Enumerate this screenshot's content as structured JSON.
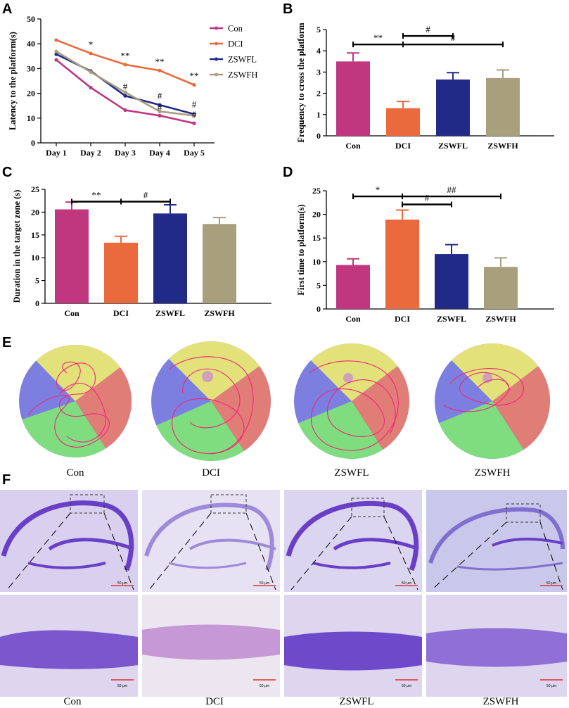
{
  "panel_labels": [
    "A",
    "B",
    "C",
    "D",
    "E",
    "F"
  ],
  "colors": {
    "con": "#c0377f",
    "dci": "#ea6a3d",
    "zswfl": "#222a87",
    "zswfh": "#a89f7d",
    "quad_yellow": "#e3e27a",
    "quad_red": "#e17d77",
    "quad_green": "#7fdd80",
    "quad_blue": "#7d7fe0",
    "track": "#f0257a",
    "stain_dark": "#6a3fc7",
    "stain_light": "#d8d0ee"
  },
  "chart_data": [
    {
      "panel": "A",
      "type": "line",
      "title": "",
      "xlabel": "",
      "ylabel": "Latency to the  platform(s)",
      "categories": [
        "Day 1",
        "Day 2",
        "Day 3",
        "Day 4",
        "Day 5"
      ],
      "ylim": [
        0,
        50
      ],
      "yticks": [
        0,
        10,
        20,
        30,
        40,
        50
      ],
      "series": [
        {
          "name": "Con",
          "color": "#c0377f",
          "values": [
            33.5,
            22.3,
            13.2,
            11.0,
            7.9
          ]
        },
        {
          "name": "DCI",
          "color": "#ea6a3d",
          "values": [
            41.5,
            36.1,
            31.6,
            29.2,
            23.4
          ]
        },
        {
          "name": "ZSWFL",
          "color": "#222a87",
          "values": [
            35.8,
            29.0,
            19.0,
            15.3,
            11.6
          ]
        },
        {
          "name": "ZSWFH",
          "color": "#a89f7d",
          "values": [
            36.9,
            28.6,
            20.4,
            12.7,
            11.0
          ]
        }
      ],
      "annotations": [
        {
          "text": "*",
          "cat": 1,
          "y": 38.5
        },
        {
          "text": "**",
          "cat": 2,
          "y": 34.0
        },
        {
          "text": "**",
          "cat": 3,
          "y": 31.6
        },
        {
          "text": "**",
          "cat": 4,
          "y": 25.8
        },
        {
          "text": "#",
          "cat": 2,
          "y": 21.6
        },
        {
          "text": "#",
          "cat": 3,
          "y": 17.8
        },
        {
          "text": "#",
          "cat": 3,
          "y": 13.0
        },
        {
          "text": "#",
          "cat": 4,
          "y": 14.4
        },
        {
          "text": "#",
          "cat": 4,
          "y": 10.2
        }
      ]
    },
    {
      "panel": "B",
      "type": "bar",
      "ylabel": "Frequency to cross the platform",
      "categories": [
        "Con",
        "DCI",
        "ZSWFL",
        "ZSWFH"
      ],
      "values": [
        3.5,
        1.3,
        2.65,
        2.72
      ],
      "errors": [
        0.4,
        0.32,
        0.32,
        0.38
      ],
      "ylim": [
        0,
        5
      ],
      "yticks": [
        0,
        1,
        2,
        3,
        4,
        5
      ],
      "brackets": [
        {
          "from": 0,
          "to": 1,
          "y": 4.3,
          "text": "**"
        },
        {
          "from": 1,
          "to": 2,
          "y": 4.7,
          "text": "#"
        },
        {
          "from": 1,
          "to": 3,
          "y": 4.3,
          "text": "#"
        }
      ]
    },
    {
      "panel": "C",
      "type": "bar",
      "ylabel": "Duration in the target zone (s)",
      "categories": [
        "Con",
        "DCI",
        "ZSWFL",
        "ZSWFH"
      ],
      "values": [
        20.6,
        13.3,
        19.7,
        17.4
      ],
      "errors": [
        1.6,
        1.4,
        1.9,
        1.4
      ],
      "ylim": [
        0,
        25
      ],
      "yticks": [
        0,
        5,
        10,
        15,
        20,
        25
      ],
      "brackets": [
        {
          "from": 0,
          "to": 1,
          "y": 22.3,
          "text": "**"
        },
        {
          "from": 1,
          "to": 2,
          "y": 22.3,
          "text": "#"
        }
      ]
    },
    {
      "panel": "D",
      "type": "bar",
      "ylabel": "First time to platform(s)",
      "categories": [
        "Con",
        "DCI",
        "ZSWFL",
        "ZSWFH"
      ],
      "values": [
        9.3,
        18.9,
        11.6,
        8.9
      ],
      "errors": [
        1.3,
        2.0,
        2.0,
        1.9
      ],
      "ylim": [
        0,
        25
      ],
      "yticks": [
        0,
        5,
        10,
        15,
        20,
        25
      ],
      "brackets": [
        {
          "from": 0,
          "to": 1,
          "y": 23.8,
          "text": "*"
        },
        {
          "from": 1,
          "to": 3,
          "y": 23.8,
          "text": "##"
        },
        {
          "from": 1,
          "to": 2,
          "y": 22.1,
          "text": "#"
        }
      ]
    }
  ],
  "panel_e": {
    "captions": [
      "Con",
      "DCI",
      "ZSWFL",
      "ZSWFH"
    ]
  },
  "panel_f": {
    "captions": [
      "Con",
      "DCI",
      "ZSWFL",
      "ZSWFH"
    ],
    "scale_label": "50 μm"
  }
}
